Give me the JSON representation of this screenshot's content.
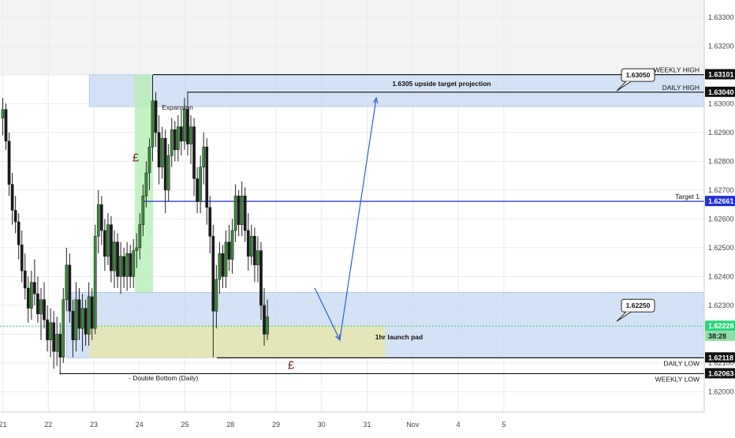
{
  "chart_data": {
    "type": "candlestick",
    "instrument_note": "",
    "y_axis": {
      "min": 1.6193,
      "max": 1.6336,
      "ticks": [
        "1.63300",
        "1.63200",
        "1.63100",
        "1.63000",
        "1.62900",
        "1.62800",
        "1.62700",
        "1.62600",
        "1.62500",
        "1.62400",
        "1.62300",
        "1.62200",
        "1.62100",
        "1.62000"
      ]
    },
    "x_axis": {
      "min": 21,
      "max": 36.4,
      "ticks": [
        {
          "label": "21",
          "x": 21
        },
        {
          "label": "22",
          "x": 22
        },
        {
          "label": "23",
          "x": 23
        },
        {
          "label": "24",
          "x": 24
        },
        {
          "label": "25",
          "x": 25
        },
        {
          "label": "28",
          "x": 26
        },
        {
          "label": "29",
          "x": 27
        },
        {
          "label": "30",
          "x": 28
        },
        {
          "label": "31",
          "x": 29
        },
        {
          "label": "Nov",
          "x": 30
        },
        {
          "label": "4",
          "x": 31
        },
        {
          "label": "5",
          "x": 32
        }
      ]
    },
    "price_tags": [
      {
        "label": "1.63101",
        "value": 1.63101,
        "bg": "#111111",
        "fg": "#ffffff"
      },
      {
        "label": "1.63040",
        "value": 1.6304,
        "bg": "#111111",
        "fg": "#ffffff"
      },
      {
        "label": "1.62661",
        "value": 1.62661,
        "bg": "#1f2fd6",
        "fg": "#ffffff"
      },
      {
        "label": "1.62228",
        "value": 1.62228,
        "bg": "#2bd47a",
        "fg": "#ffffff"
      },
      {
        "label": "38:28",
        "value": 1.62193,
        "bg": "#8fe0a8",
        "fg": "#1a1a1a"
      },
      {
        "label": "1.62118",
        "value": 1.62118,
        "bg": "#111111",
        "fg": "#ffffff"
      },
      {
        "label": "1.62063",
        "value": 1.62063,
        "bg": "#111111",
        "fg": "#ffffff"
      }
    ],
    "levels": [
      {
        "name": "weekly-high",
        "label": "WEEKLY HIGH",
        "value": 1.63101,
        "x_start": 24.3,
        "color": "#111111"
      },
      {
        "name": "daily-high",
        "label": "DAILY HIGH",
        "value": 1.6304,
        "x_start": 25.05,
        "color": "#111111"
      },
      {
        "name": "target-1",
        "label": "Target 1",
        "value": 1.62661,
        "x_start": 24.1,
        "color": "#1f2fd6"
      },
      {
        "name": "daily-low",
        "label": "DAILY LOW",
        "value": 1.62118,
        "x_start": 25.7,
        "color": "#111111"
      },
      {
        "name": "weekly-low",
        "label": "WEEKLY LOW",
        "value": 1.62063,
        "x_start": 22.25,
        "color": "#111111"
      }
    ],
    "current_price": 1.62228,
    "zones": [
      {
        "name": "upper-target-zone",
        "x0": 22.9,
        "x1": 36.4,
        "y0": 1.6299,
        "y1": 1.631,
        "fill": "#c5d8f3",
        "opacity": 0.75
      },
      {
        "name": "expansion-zone",
        "x0": 23.9,
        "x1": 24.3,
        "y0": 1.62345,
        "y1": 1.631,
        "fill": "#b6efb6",
        "opacity": 0.8
      },
      {
        "name": "lower-demand-zone",
        "x0": 22.4,
        "x1": 36.4,
        "y0": 1.62118,
        "y1": 1.62345,
        "fill": "#c5d8f3",
        "opacity": 0.75
      },
      {
        "name": "launch-pad-zone",
        "x0": 22.9,
        "x1": 29.4,
        "y0": 1.62118,
        "y1": 1.6223,
        "fill": "#e6e7b2",
        "opacity": 0.9
      }
    ],
    "callouts": [
      {
        "name": "callout-63050",
        "label": "1.63050",
        "value": 1.6305
      },
      {
        "name": "callout-62250",
        "label": "1.62250",
        "value": 1.6225
      }
    ],
    "annotations": [
      {
        "name": "upside-target-label",
        "text": "1.6305 upside target projection"
      },
      {
        "name": "expansion-label",
        "text": "Expansion"
      },
      {
        "name": "launch-pad-label",
        "text": "1hr launch pad"
      },
      {
        "name": "double-bottom-label",
        "text": "- Double Bottom (Daily)"
      },
      {
        "name": "pound-symbol-top",
        "text": "£"
      },
      {
        "name": "pound-symbol-bottom",
        "text": "£"
      }
    ],
    "projection_path": [
      {
        "x": 27.85,
        "y": 1.6236
      },
      {
        "x": 28.4,
        "y": 1.6218
      },
      {
        "x": 29.2,
        "y": 1.6302
      }
    ],
    "candles": [
      {
        "x": 21.0,
        "o": 1.6295,
        "h": 1.6302,
        "l": 1.6289,
        "c": 1.6298
      },
      {
        "x": 21.07,
        "o": 1.6298,
        "h": 1.63,
        "l": 1.6284,
        "c": 1.6287
      },
      {
        "x": 21.14,
        "o": 1.6287,
        "h": 1.629,
        "l": 1.6268,
        "c": 1.6272
      },
      {
        "x": 21.21,
        "o": 1.6272,
        "h": 1.6276,
        "l": 1.6258,
        "c": 1.6263
      },
      {
        "x": 21.28,
        "o": 1.6263,
        "h": 1.6268,
        "l": 1.6255,
        "c": 1.6259
      },
      {
        "x": 21.35,
        "o": 1.6259,
        "h": 1.6262,
        "l": 1.6246,
        "c": 1.6251
      },
      {
        "x": 21.42,
        "o": 1.6251,
        "h": 1.6256,
        "l": 1.6238,
        "c": 1.6242
      },
      {
        "x": 21.49,
        "o": 1.6242,
        "h": 1.6248,
        "l": 1.6232,
        "c": 1.6236
      },
      {
        "x": 21.56,
        "o": 1.6236,
        "h": 1.624,
        "l": 1.6224,
        "c": 1.6229
      },
      {
        "x": 21.63,
        "o": 1.6229,
        "h": 1.6242,
        "l": 1.6225,
        "c": 1.6238
      },
      {
        "x": 21.7,
        "o": 1.6238,
        "h": 1.6246,
        "l": 1.623,
        "c": 1.6234
      },
      {
        "x": 21.77,
        "o": 1.6234,
        "h": 1.624,
        "l": 1.6224,
        "c": 1.6227
      },
      {
        "x": 21.84,
        "o": 1.6227,
        "h": 1.6236,
        "l": 1.6218,
        "c": 1.6232
      },
      {
        "x": 21.91,
        "o": 1.6232,
        "h": 1.6238,
        "l": 1.6222,
        "c": 1.6225
      },
      {
        "x": 21.98,
        "o": 1.6225,
        "h": 1.623,
        "l": 1.6214,
        "c": 1.6218
      },
      {
        "x": 22.05,
        "o": 1.6218,
        "h": 1.6229,
        "l": 1.6212,
        "c": 1.6224
      },
      {
        "x": 22.12,
        "o": 1.6224,
        "h": 1.6228,
        "l": 1.6208,
        "c": 1.6214
      },
      {
        "x": 22.19,
        "o": 1.6214,
        "h": 1.6226,
        "l": 1.6209,
        "c": 1.622
      },
      {
        "x": 22.26,
        "o": 1.622,
        "h": 1.6224,
        "l": 1.6206,
        "c": 1.6212
      },
      {
        "x": 22.33,
        "o": 1.6212,
        "h": 1.6236,
        "l": 1.621,
        "c": 1.6232
      },
      {
        "x": 22.4,
        "o": 1.6232,
        "h": 1.625,
        "l": 1.6228,
        "c": 1.6244
      },
      {
        "x": 22.47,
        "o": 1.6244,
        "h": 1.6248,
        "l": 1.6224,
        "c": 1.6228
      },
      {
        "x": 22.54,
        "o": 1.6228,
        "h": 1.6232,
        "l": 1.6212,
        "c": 1.6218
      },
      {
        "x": 22.61,
        "o": 1.6218,
        "h": 1.6238,
        "l": 1.6214,
        "c": 1.6232
      },
      {
        "x": 22.68,
        "o": 1.6232,
        "h": 1.6236,
        "l": 1.6218,
        "c": 1.6222
      },
      {
        "x": 22.75,
        "o": 1.6222,
        "h": 1.6234,
        "l": 1.6214,
        "c": 1.6229
      },
      {
        "x": 22.82,
        "o": 1.6229,
        "h": 1.6232,
        "l": 1.6216,
        "c": 1.622
      },
      {
        "x": 22.89,
        "o": 1.622,
        "h": 1.6238,
        "l": 1.6216,
        "c": 1.6233
      },
      {
        "x": 22.96,
        "o": 1.6233,
        "h": 1.6236,
        "l": 1.6218,
        "c": 1.6222
      },
      {
        "x": 23.03,
        "o": 1.6222,
        "h": 1.6258,
        "l": 1.622,
        "c": 1.6254
      },
      {
        "x": 23.1,
        "o": 1.6254,
        "h": 1.627,
        "l": 1.6248,
        "c": 1.6265
      },
      {
        "x": 23.17,
        "o": 1.6265,
        "h": 1.6268,
        "l": 1.6251,
        "c": 1.6256
      },
      {
        "x": 23.24,
        "o": 1.6256,
        "h": 1.626,
        "l": 1.6242,
        "c": 1.6247
      },
      {
        "x": 23.31,
        "o": 1.6247,
        "h": 1.6262,
        "l": 1.6244,
        "c": 1.6258
      },
      {
        "x": 23.38,
        "o": 1.6258,
        "h": 1.6261,
        "l": 1.6238,
        "c": 1.6242
      },
      {
        "x": 23.45,
        "o": 1.6242,
        "h": 1.6256,
        "l": 1.6236,
        "c": 1.6252
      },
      {
        "x": 23.52,
        "o": 1.6252,
        "h": 1.6255,
        "l": 1.6236,
        "c": 1.624
      },
      {
        "x": 23.59,
        "o": 1.624,
        "h": 1.6252,
        "l": 1.6234,
        "c": 1.6247
      },
      {
        "x": 23.66,
        "o": 1.6247,
        "h": 1.625,
        "l": 1.6236,
        "c": 1.624
      },
      {
        "x": 23.73,
        "o": 1.624,
        "h": 1.6252,
        "l": 1.6235,
        "c": 1.6248
      },
      {
        "x": 23.8,
        "o": 1.6248,
        "h": 1.6251,
        "l": 1.6236,
        "c": 1.624
      },
      {
        "x": 23.87,
        "o": 1.624,
        "h": 1.6253,
        "l": 1.6236,
        "c": 1.6249
      },
      {
        "x": 23.94,
        "o": 1.6249,
        "h": 1.6255,
        "l": 1.6243,
        "c": 1.625
      },
      {
        "x": 24.01,
        "o": 1.625,
        "h": 1.6262,
        "l": 1.6246,
        "c": 1.6258
      },
      {
        "x": 24.08,
        "o": 1.6258,
        "h": 1.6272,
        "l": 1.6254,
        "c": 1.6268
      },
      {
        "x": 24.15,
        "o": 1.6268,
        "h": 1.628,
        "l": 1.6264,
        "c": 1.6276
      },
      {
        "x": 24.22,
        "o": 1.6276,
        "h": 1.6288,
        "l": 1.627,
        "c": 1.6285
      },
      {
        "x": 24.29,
        "o": 1.6285,
        "h": 1.631,
        "l": 1.628,
        "c": 1.6301
      },
      {
        "x": 24.36,
        "o": 1.6301,
        "h": 1.6304,
        "l": 1.6285,
        "c": 1.629
      },
      {
        "x": 24.43,
        "o": 1.629,
        "h": 1.6296,
        "l": 1.6272,
        "c": 1.6278
      },
      {
        "x": 24.5,
        "o": 1.6278,
        "h": 1.6292,
        "l": 1.6274,
        "c": 1.6288
      },
      {
        "x": 24.57,
        "o": 1.6288,
        "h": 1.6291,
        "l": 1.6262,
        "c": 1.627
      },
      {
        "x": 24.64,
        "o": 1.627,
        "h": 1.6286,
        "l": 1.6266,
        "c": 1.6282
      },
      {
        "x": 24.71,
        "o": 1.6282,
        "h": 1.6295,
        "l": 1.6278,
        "c": 1.6291
      },
      {
        "x": 24.78,
        "o": 1.6291,
        "h": 1.6294,
        "l": 1.628,
        "c": 1.6284
      },
      {
        "x": 24.85,
        "o": 1.6284,
        "h": 1.6296,
        "l": 1.628,
        "c": 1.6292
      },
      {
        "x": 24.92,
        "o": 1.6292,
        "h": 1.6298,
        "l": 1.6282,
        "c": 1.6287
      },
      {
        "x": 24.99,
        "o": 1.6287,
        "h": 1.6302,
        "l": 1.6284,
        "c": 1.6298
      },
      {
        "x": 25.06,
        "o": 1.6298,
        "h": 1.6304,
        "l": 1.6282,
        "c": 1.6286
      },
      {
        "x": 25.13,
        "o": 1.6286,
        "h": 1.6296,
        "l": 1.6279,
        "c": 1.6292
      },
      {
        "x": 25.2,
        "o": 1.6292,
        "h": 1.6295,
        "l": 1.6268,
        "c": 1.6274
      },
      {
        "x": 25.27,
        "o": 1.6274,
        "h": 1.6278,
        "l": 1.6262,
        "c": 1.6266
      },
      {
        "x": 25.34,
        "o": 1.6266,
        "h": 1.6282,
        "l": 1.6262,
        "c": 1.6278
      },
      {
        "x": 25.41,
        "o": 1.6278,
        "h": 1.629,
        "l": 1.6272,
        "c": 1.6285
      },
      {
        "x": 25.48,
        "o": 1.6285,
        "h": 1.6288,
        "l": 1.6258,
        "c": 1.6264
      },
      {
        "x": 25.55,
        "o": 1.6264,
        "h": 1.6268,
        "l": 1.6248,
        "c": 1.6254
      },
      {
        "x": 25.62,
        "o": 1.6254,
        "h": 1.6258,
        "l": 1.6212,
        "c": 1.6228
      },
      {
        "x": 25.69,
        "o": 1.6228,
        "h": 1.6244,
        "l": 1.6222,
        "c": 1.6239
      },
      {
        "x": 25.76,
        "o": 1.6239,
        "h": 1.6252,
        "l": 1.6234,
        "c": 1.6248
      },
      {
        "x": 25.83,
        "o": 1.6248,
        "h": 1.6251,
        "l": 1.6236,
        "c": 1.624
      },
      {
        "x": 25.9,
        "o": 1.624,
        "h": 1.6256,
        "l": 1.6236,
        "c": 1.6252
      },
      {
        "x": 25.97,
        "o": 1.6252,
        "h": 1.6258,
        "l": 1.6242,
        "c": 1.6246
      },
      {
        "x": 26.04,
        "o": 1.6246,
        "h": 1.626,
        "l": 1.6241,
        "c": 1.6256
      },
      {
        "x": 26.11,
        "o": 1.6256,
        "h": 1.6272,
        "l": 1.6252,
        "c": 1.6268
      },
      {
        "x": 26.18,
        "o": 1.6268,
        "h": 1.627,
        "l": 1.6254,
        "c": 1.6258
      },
      {
        "x": 26.25,
        "o": 1.6258,
        "h": 1.6273,
        "l": 1.6254,
        "c": 1.6268
      },
      {
        "x": 26.32,
        "o": 1.6268,
        "h": 1.6271,
        "l": 1.6252,
        "c": 1.6256
      },
      {
        "x": 26.39,
        "o": 1.6256,
        "h": 1.6262,
        "l": 1.6242,
        "c": 1.6247
      },
      {
        "x": 26.46,
        "o": 1.6247,
        "h": 1.6258,
        "l": 1.6244,
        "c": 1.6254
      },
      {
        "x": 26.53,
        "o": 1.6254,
        "h": 1.6257,
        "l": 1.6238,
        "c": 1.6244
      },
      {
        "x": 26.6,
        "o": 1.6244,
        "h": 1.6254,
        "l": 1.6238,
        "c": 1.6249
      },
      {
        "x": 26.67,
        "o": 1.6249,
        "h": 1.6252,
        "l": 1.6225,
        "c": 1.623
      },
      {
        "x": 26.74,
        "o": 1.623,
        "h": 1.6236,
        "l": 1.6216,
        "c": 1.622
      },
      {
        "x": 26.81,
        "o": 1.622,
        "h": 1.6232,
        "l": 1.6218,
        "c": 1.6226
      }
    ]
  },
  "watermark": ""
}
